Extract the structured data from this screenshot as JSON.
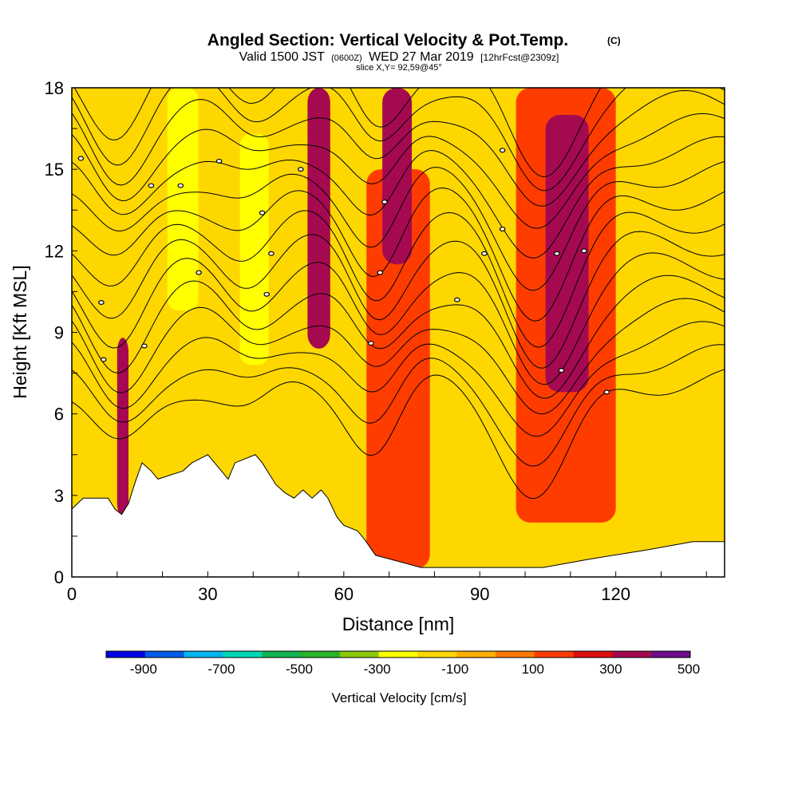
{
  "chart_data": {
    "type": "heatmap",
    "title": "Angled Section: Vertical Velocity & Pot.Temp.",
    "title_units": "(C)",
    "subtitle_parts": [
      "Valid 1500 JST",
      "(0600Z)",
      "WED 27 Mar 2019",
      "[12hrFcst@2309z]"
    ],
    "slice_label": "slice X,Y= 92,59@45°",
    "xlabel": "Distance [nm]",
    "ylabel": "Height [Kft MSL]",
    "xlim": [
      0,
      144
    ],
    "ylim": [
      0,
      18
    ],
    "x_ticks": [
      "0",
      "30",
      "60",
      "90",
      "120"
    ],
    "y_ticks": [
      "0",
      "3",
      "6",
      "9",
      "12",
      "15",
      "18"
    ],
    "colorbar": {
      "label": "Vertical Velocity [cm/s]",
      "tick_labels": [
        "-900",
        "-700",
        "-500",
        "-300",
        "-100",
        "100",
        "300",
        "500"
      ],
      "colors": [
        "#0000e6",
        "#005ae6",
        "#00b4f0",
        "#00d7b4",
        "#14b450",
        "#28b428",
        "#8cc80a",
        "#ffff00",
        "#ffd700",
        "#ffaf00",
        "#ff7800",
        "#ff3c00",
        "#dc0f0f",
        "#a50a50",
        "#6e0a8c"
      ]
    },
    "background_color": "#ffd700",
    "updraft_bands": [
      {
        "x": [
          10,
          12.5
        ],
        "y": [
          2.2,
          8.8
        ],
        "level": 300
      },
      {
        "x": [
          52,
          57
        ],
        "y": [
          8.4,
          18
        ],
        "level": 300
      },
      {
        "x": [
          68.5,
          75
        ],
        "y": [
          11.5,
          18
        ],
        "level": 300
      },
      {
        "x": [
          104.5,
          114
        ],
        "y": [
          6.8,
          17
        ],
        "level": 300
      },
      {
        "x": [
          65,
          79
        ],
        "y": [
          0.3,
          15
        ],
        "level": 100
      },
      {
        "x": [
          98,
          120
        ],
        "y": [
          2,
          18
        ],
        "level": 100
      }
    ],
    "downdraft_bands": [
      {
        "x": [
          22.5,
          26.5
        ],
        "y": [
          9.8,
          18
        ],
        "level": -300
      },
      {
        "x": [
          38.5,
          42
        ],
        "y": [
          7.8,
          16.3
        ],
        "level": -300
      }
    ],
    "terrain_profile": {
      "x": [
        0,
        2.5,
        8,
        9.5,
        11,
        12.5,
        14,
        15.5,
        17.5,
        19,
        24.5,
        26.5,
        30,
        32.5,
        34.5,
        36,
        40.5,
        42,
        45,
        47,
        49,
        51,
        53,
        55,
        56.5,
        58.5,
        60,
        63,
        64.5,
        67,
        77,
        92,
        104,
        114,
        127,
        137,
        144
      ],
      "y": [
        2.5,
        2.9,
        2.9,
        2.5,
        2.3,
        2.7,
        3.5,
        4.2,
        3.9,
        3.6,
        3.9,
        4.2,
        4.5,
        4.0,
        3.6,
        4.2,
        4.5,
        4.2,
        3.4,
        3.1,
        2.9,
        3.2,
        2.9,
        3.2,
        2.9,
        2.2,
        1.9,
        1.7,
        1.4,
        0.8,
        0.35,
        0.35,
        0.35,
        0.65,
        1.0,
        1.3,
        1.3
      ]
    },
    "theta_isotherm_label_count": 23
  }
}
